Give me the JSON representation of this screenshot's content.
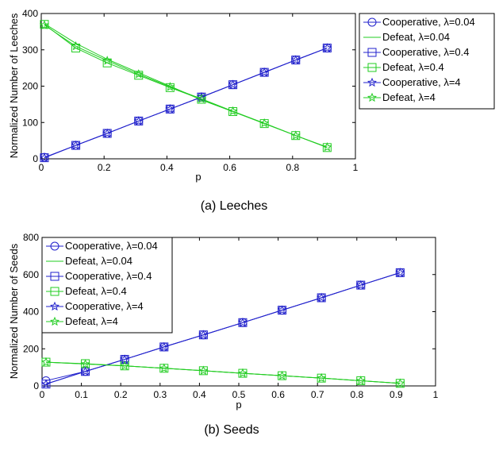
{
  "chart_data": [
    {
      "type": "line",
      "caption": "(a)  Leeches",
      "xlabel": "p",
      "ylabel": "Normalized Number of Leeches",
      "xlim": [
        0,
        1
      ],
      "ylim": [
        0,
        400
      ],
      "xticks": [
        "0",
        "0.2",
        "0.4",
        "0.6",
        "0.8",
        "1"
      ],
      "yticks": [
        "0",
        "100",
        "200",
        "300",
        "400"
      ],
      "grid": false,
      "legend_position": "outside-right",
      "x": [
        0.01,
        0.11,
        0.21,
        0.31,
        0.41,
        0.51,
        0.61,
        0.71,
        0.81,
        0.91
      ],
      "series": [
        {
          "name": "Cooperative, λ=0.04",
          "color": "#2222cc",
          "marker": "circle",
          "values": [
            4,
            37,
            70,
            104,
            137,
            170,
            204,
            238,
            272,
            305
          ]
        },
        {
          "name": "Defeat, λ=0.04",
          "color": "#22cc22",
          "marker": "none",
          "values": [
            372,
            318,
            274,
            237,
            200,
            162,
            130,
            98,
            64,
            32
          ]
        },
        {
          "name": "Cooperative, λ=0.4",
          "color": "#2222cc",
          "marker": "square",
          "values": [
            3,
            37,
            70,
            104,
            137,
            170,
            204,
            238,
            272,
            305
          ]
        },
        {
          "name": "Defeat, λ=0.4",
          "color": "#22cc22",
          "marker": "square",
          "values": [
            370,
            305,
            264,
            230,
            196,
            164,
            130,
            97,
            64,
            31
          ]
        },
        {
          "name": "Cooperative, λ=4",
          "color": "#2222cc",
          "marker": "star",
          "values": [
            3,
            37,
            70,
            104,
            137,
            170,
            204,
            238,
            272,
            305
          ]
        },
        {
          "name": "Defeat, λ=4",
          "color": "#22cc22",
          "marker": "star",
          "values": [
            368,
            310,
            270,
            233,
            198,
            165,
            131,
            98,
            64,
            32
          ]
        }
      ]
    },
    {
      "type": "line",
      "caption": "(b)  Seeds",
      "xlabel": "p",
      "ylabel": "Normalized Number of Seeds",
      "xlim": [
        0,
        1
      ],
      "ylim": [
        0,
        800
      ],
      "xticks": [
        "0",
        "0.1",
        "0.2",
        "0.3",
        "0.4",
        "0.5",
        "0.6",
        "0.7",
        "0.8",
        "0.9",
        "1"
      ],
      "yticks": [
        "0",
        "200",
        "400",
        "600",
        "800"
      ],
      "grid": false,
      "legend_position": "top-left",
      "x": [
        0.01,
        0.11,
        0.21,
        0.31,
        0.41,
        0.51,
        0.61,
        0.71,
        0.81,
        0.91
      ],
      "series": [
        {
          "name": "Cooperative, λ=0.04",
          "color": "#2222cc",
          "marker": "circle",
          "values": [
            28,
            78,
            143,
            210,
            275,
            341,
            408,
            475,
            543,
            610
          ]
        },
        {
          "name": "Defeat, λ=0.04",
          "color": "#22cc22",
          "marker": "none",
          "values": [
            128,
            118,
            108,
            95,
            82,
            68,
            55,
            42,
            28,
            14
          ]
        },
        {
          "name": "Cooperative, λ=0.4",
          "color": "#2222cc",
          "marker": "square",
          "values": [
            10,
            78,
            143,
            210,
            275,
            341,
            408,
            475,
            543,
            610
          ]
        },
        {
          "name": "Defeat, λ=0.4",
          "color": "#22cc22",
          "marker": "square",
          "values": [
            128,
            120,
            108,
            95,
            82,
            68,
            55,
            42,
            28,
            14
          ]
        },
        {
          "name": "Cooperative, λ=4",
          "color": "#2222cc",
          "marker": "star",
          "values": [
            10,
            78,
            143,
            210,
            275,
            341,
            408,
            475,
            543,
            610
          ]
        },
        {
          "name": "Defeat, λ=4",
          "color": "#22cc22",
          "marker": "star",
          "values": [
            128,
            118,
            108,
            95,
            82,
            68,
            55,
            42,
            28,
            14
          ]
        }
      ]
    }
  ]
}
